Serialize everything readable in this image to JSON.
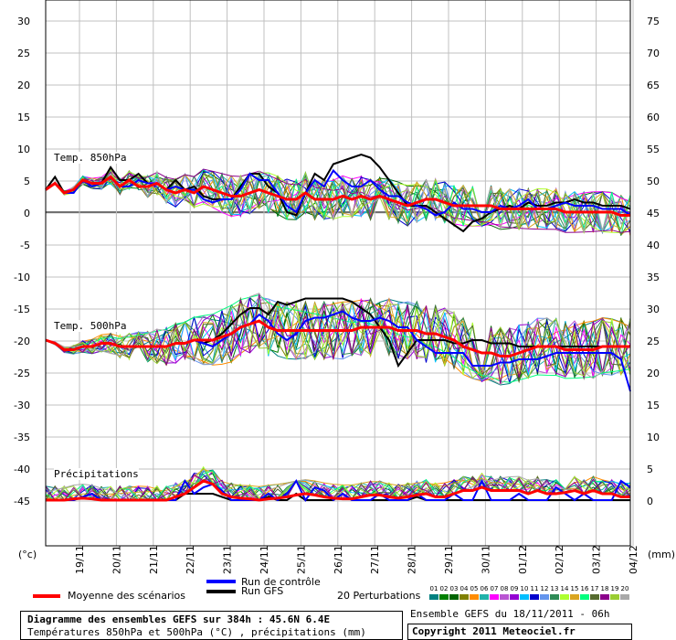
{
  "chart_data": {
    "type": "line",
    "left_axis": {
      "ticks": [
        "30",
        "25",
        "20",
        "15",
        "10",
        "5",
        "0",
        "-5",
        "-10",
        "-15",
        "-20",
        "-25",
        "-30",
        "-35",
        "-40",
        "-45"
      ],
      "unit": "(°c)"
    },
    "right_axis": {
      "ticks": [
        "75",
        "70",
        "65",
        "60",
        "55",
        "50",
        "45",
        "40",
        "35",
        "30",
        "25",
        "20",
        "15",
        "10",
        "5",
        "0"
      ],
      "unit": "(mm)"
    },
    "x_ticks": [
      "19/11",
      "20/11",
      "21/11",
      "22/11",
      "23/11",
      "24/11",
      "25/11",
      "26/11",
      "27/11",
      "28/11",
      "29/11",
      "30/11",
      "01/12",
      "02/12",
      "03/12",
      "04/12"
    ],
    "panel_labels": {
      "t850": "Temp. 850hPa",
      "t500": "Temp. 500hPa",
      "precip": "Précipitations"
    },
    "t850": {
      "mean": [
        3.5,
        4.5,
        3,
        3.5,
        5,
        4.5,
        4.5,
        5.5,
        4,
        5,
        4,
        4,
        4.5,
        3.5,
        3,
        3.5,
        3,
        4,
        3.5,
        3,
        2.5,
        2.5,
        3,
        3.5,
        3,
        2.5,
        2,
        2,
        3,
        2,
        2,
        2,
        2.5,
        2,
        2.5,
        2,
        2.5,
        2,
        1.5,
        1,
        1.5,
        2,
        2,
        1.5,
        1,
        1,
        1,
        1,
        1,
        0.5,
        0.5,
        0.5,
        0.5,
        0.5,
        0.5,
        0.5,
        0,
        0,
        0,
        0,
        0,
        0,
        -0.5,
        -0.5
      ],
      "control": [
        3.5,
        4.5,
        3,
        3,
        5,
        4,
        4.5,
        5.5,
        4,
        4,
        5,
        4.5,
        4.5,
        3.5,
        4,
        3.5,
        3.5,
        2,
        1.5,
        2,
        2,
        3.5,
        6,
        5,
        5,
        3,
        1,
        0,
        3,
        5,
        4,
        6.5,
        5,
        4,
        4,
        5,
        3.5,
        2.5,
        2.5,
        1.5,
        1,
        0.5,
        -0.5,
        0,
        1.5,
        0.5,
        0.5,
        0,
        0,
        1,
        0.5,
        1,
        2,
        0.5,
        0.5,
        1,
        1.5,
        1,
        1,
        1,
        0.5,
        0.5,
        0.5,
        -0.5
      ],
      "gfs": [
        3.5,
        5.5,
        3,
        3,
        5,
        4,
        4.5,
        7,
        5,
        5,
        6,
        4.5,
        4.5,
        3.5,
        5,
        3.5,
        4,
        2.5,
        2,
        2,
        2,
        4,
        6,
        6,
        4,
        3,
        0,
        -0.5,
        3,
        6,
        5,
        7.5,
        8,
        8.5,
        9,
        8.5,
        7,
        5,
        3,
        1,
        1,
        1,
        0,
        -1,
        -2,
        -3,
        -1.5,
        -1,
        0,
        0.5,
        1,
        0.5,
        1.5,
        1,
        1,
        1.5,
        1.5,
        2,
        1.5,
        1.5,
        1,
        1,
        1,
        0.5
      ]
    },
    "t500": {
      "mean": [
        -20,
        -20.5,
        -21.5,
        -21.5,
        -21,
        -21,
        -20.5,
        -20.5,
        -21,
        -21,
        -21,
        -21,
        -21,
        -21,
        -20.5,
        -20.5,
        -20,
        -20,
        -20,
        -19.5,
        -19,
        -18,
        -17.5,
        -17,
        -18,
        -18.5,
        -18.5,
        -18.5,
        -18.5,
        -18.5,
        -18.5,
        -18.5,
        -18.5,
        -18.5,
        -18,
        -18,
        -18,
        -18,
        -18.5,
        -18.5,
        -18.5,
        -19,
        -19,
        -19.5,
        -20,
        -21,
        -21.5,
        -22,
        -22,
        -22.5,
        -22.5,
        -22,
        -21.5,
        -21,
        -21,
        -21,
        -21.5,
        -21.5,
        -21.5,
        -21.5,
        -21,
        -21,
        -21,
        -21
      ],
      "control": [
        -20,
        -20.5,
        -21.5,
        -21.5,
        -21,
        -21,
        -20.5,
        -20.5,
        -21,
        -21,
        -21,
        -21,
        -21,
        -21,
        -20.5,
        -20.5,
        -20,
        -20.5,
        -21,
        -20,
        -19,
        -18,
        -17.5,
        -16,
        -17,
        -19,
        -20,
        -19,
        -17,
        -16.5,
        -16.5,
        -16,
        -15.5,
        -16.5,
        -17,
        -17,
        -16.5,
        -17,
        -18,
        -18,
        -20,
        -21,
        -22,
        -22,
        -22,
        -22,
        -24,
        -24,
        -24,
        -23.5,
        -23.5,
        -23,
        -23,
        -23,
        -22.5,
        -22,
        -22,
        -22,
        -22,
        -22,
        -22,
        -22,
        -23,
        -28
      ],
      "gfs": [
        -20,
        -20.5,
        -21.5,
        -21.5,
        -21,
        -21,
        -20.5,
        -20.5,
        -21,
        -21,
        -21,
        -21,
        -21,
        -21,
        -20.5,
        -20.5,
        -20,
        -20.5,
        -20,
        -19,
        -17.5,
        -16,
        -15,
        -15,
        -16,
        -14,
        -14.5,
        -14,
        -13.5,
        -13.5,
        -13.5,
        -13.5,
        -13.5,
        -14,
        -15,
        -16,
        -18,
        -20,
        -24,
        -22,
        -20,
        -20,
        -20,
        -20,
        -20.5,
        -20.5,
        -20,
        -20,
        -20.5,
        -20.5,
        -20.5,
        -21,
        -21,
        -21,
        -21,
        -21,
        -21,
        -21,
        -21,
        -21,
        -21,
        -21,
        -21,
        -21
      ]
    },
    "precip": {
      "mean": [
        0,
        0,
        0,
        0.2,
        0.3,
        0.2,
        0,
        0,
        0,
        0,
        0,
        0,
        0,
        0,
        0.5,
        1,
        2,
        3,
        2.5,
        1,
        0.5,
        0.3,
        0.2,
        0,
        0.2,
        0.3,
        0.5,
        0.8,
        1,
        0.8,
        0.5,
        0.3,
        0.2,
        0.2,
        0.5,
        0.8,
        0.8,
        0.5,
        0.3,
        0.5,
        0.8,
        1,
        0.5,
        0.5,
        1,
        1.5,
        1.5,
        2,
        1.5,
        1.5,
        1.5,
        1.5,
        1,
        1.5,
        1,
        1,
        1.2,
        1.5,
        1,
        1.5,
        1,
        1,
        0.5,
        0.5
      ],
      "control": [
        0,
        0,
        0,
        0,
        0.5,
        1,
        0,
        0,
        0,
        0,
        0,
        0,
        0,
        0,
        0,
        3,
        1,
        2,
        2.5,
        1.5,
        0,
        0,
        0,
        0,
        1,
        0,
        1,
        3,
        0,
        2,
        1.5,
        0,
        1,
        0,
        0,
        0,
        1,
        0,
        0,
        0,
        1,
        0,
        0,
        0,
        1,
        0,
        0,
        3,
        0,
        0,
        0,
        1,
        0,
        0,
        0,
        2,
        1,
        0,
        1,
        0,
        0,
        0,
        3,
        2
      ],
      "gfs": [
        0,
        0,
        0,
        0,
        0.5,
        1,
        0,
        0,
        0,
        0,
        0,
        0,
        0,
        0,
        0,
        1,
        1,
        1,
        1,
        0.5,
        0,
        0,
        0,
        0,
        0.5,
        0,
        0,
        1,
        0,
        0,
        0,
        0,
        1,
        0,
        0,
        0,
        0,
        0,
        0,
        0,
        0.5,
        0,
        0,
        0,
        0,
        0,
        0,
        0,
        0,
        0,
        0,
        0,
        0,
        0,
        0,
        0,
        0,
        0,
        0,
        0,
        0,
        0,
        0,
        0
      ]
    },
    "series_legend": {
      "mean": "Moyenne des scénarios",
      "control": "Run de contrôle",
      "gfs": "Run GFS",
      "perturbations": "20 Perturbations"
    }
  },
  "perturbations": {
    "numbers": [
      "01",
      "02",
      "03",
      "04",
      "05",
      "06",
      "07",
      "08",
      "09",
      "10",
      "11",
      "12",
      "13",
      "14",
      "15",
      "16",
      "17",
      "18",
      "19",
      "20"
    ],
    "colors": [
      "#008080",
      "#008000",
      "#006400",
      "#808000",
      "#FF8C00",
      "#20B2AA",
      "#FF00FF",
      "#BA55D3",
      "#9400D3",
      "#00BFFF",
      "#0000CD",
      "#6495ED",
      "#2E8B57",
      "#ADFF2F",
      "#DAA520",
      "#00FF7F",
      "#556B2F",
      "#8B008B",
      "#9ACD32",
      "#A9A9A9"
    ]
  },
  "colors": {
    "mean": "#ff0000",
    "control": "#0000ff",
    "gfs": "#000000"
  },
  "footer": {
    "title": "Diagramme des ensembles GEFS sur 384h : 45.6N 6.4E",
    "subtitle": "Températures 850hPa et 500hPa (°C) , précipitations (mm)",
    "run_info": "Ensemble GEFS du 18/11/2011 - 06h",
    "copyright": "Copyright 2011 Meteociel.fr"
  }
}
